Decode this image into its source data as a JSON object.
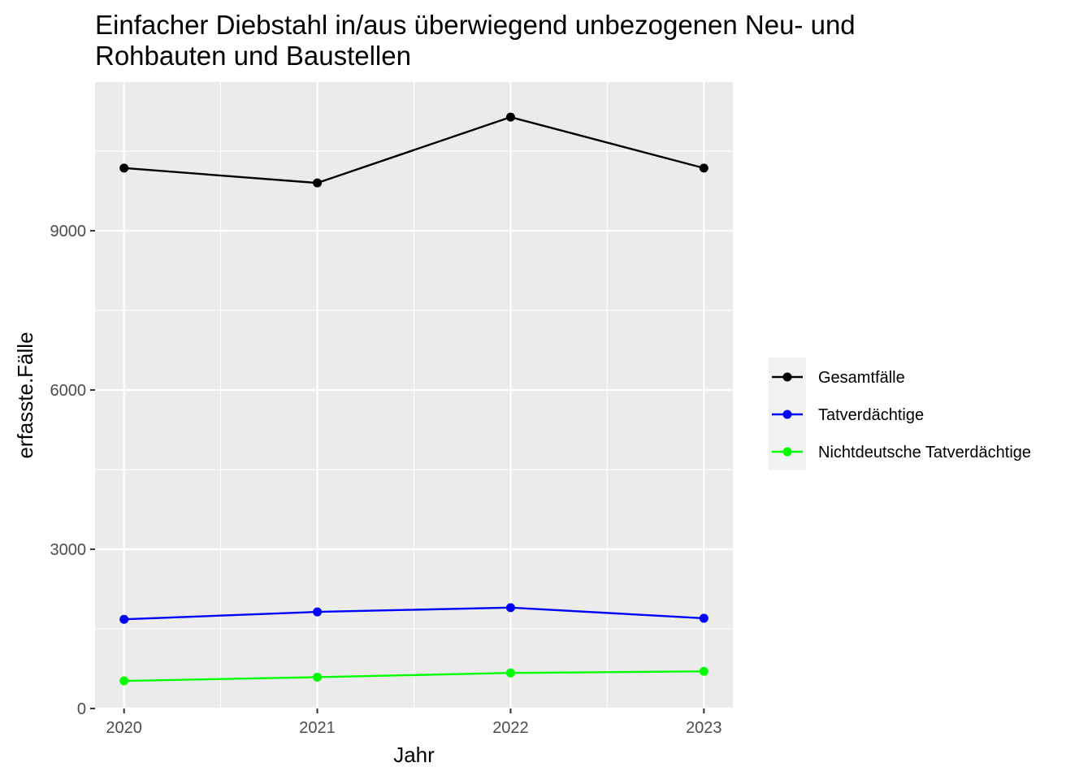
{
  "chart_data": {
    "type": "line",
    "title": "Einfacher Diebstahl in/aus überwiegend unbezogenen Neu- und Rohbauten und Baustellen",
    "title_lines": [
      "Einfacher Diebstahl in/aus überwiegend unbezogenen Neu- und",
      "Rohbauten und Baustellen"
    ],
    "xlabel": "Jahr",
    "ylabel": "erfasste.Fälle",
    "x": [
      "2020",
      "2021",
      "2022",
      "2023"
    ],
    "xlim": [
      2019.85,
      2023.15
    ],
    "ylim": [
      0,
      11800
    ],
    "y_ticks": [
      0,
      3000,
      6000,
      9000
    ],
    "y_tick_labels": [
      "0",
      "3000",
      "6000",
      "9000"
    ],
    "grid": true,
    "panel_background": "#ebebeb",
    "legend_position": "right",
    "series": [
      {
        "name": "Gesamtfälle",
        "color": "#000000",
        "values": [
          10180,
          9900,
          11140,
          10180
        ]
      },
      {
        "name": "Tatverdächtige",
        "color": "#0000ff",
        "values": [
          1680,
          1820,
          1900,
          1700
        ]
      },
      {
        "name": "Nichtdeutsche Tatverdächtige",
        "color": "#00ff00",
        "values": [
          520,
          590,
          670,
          700
        ]
      }
    ]
  }
}
